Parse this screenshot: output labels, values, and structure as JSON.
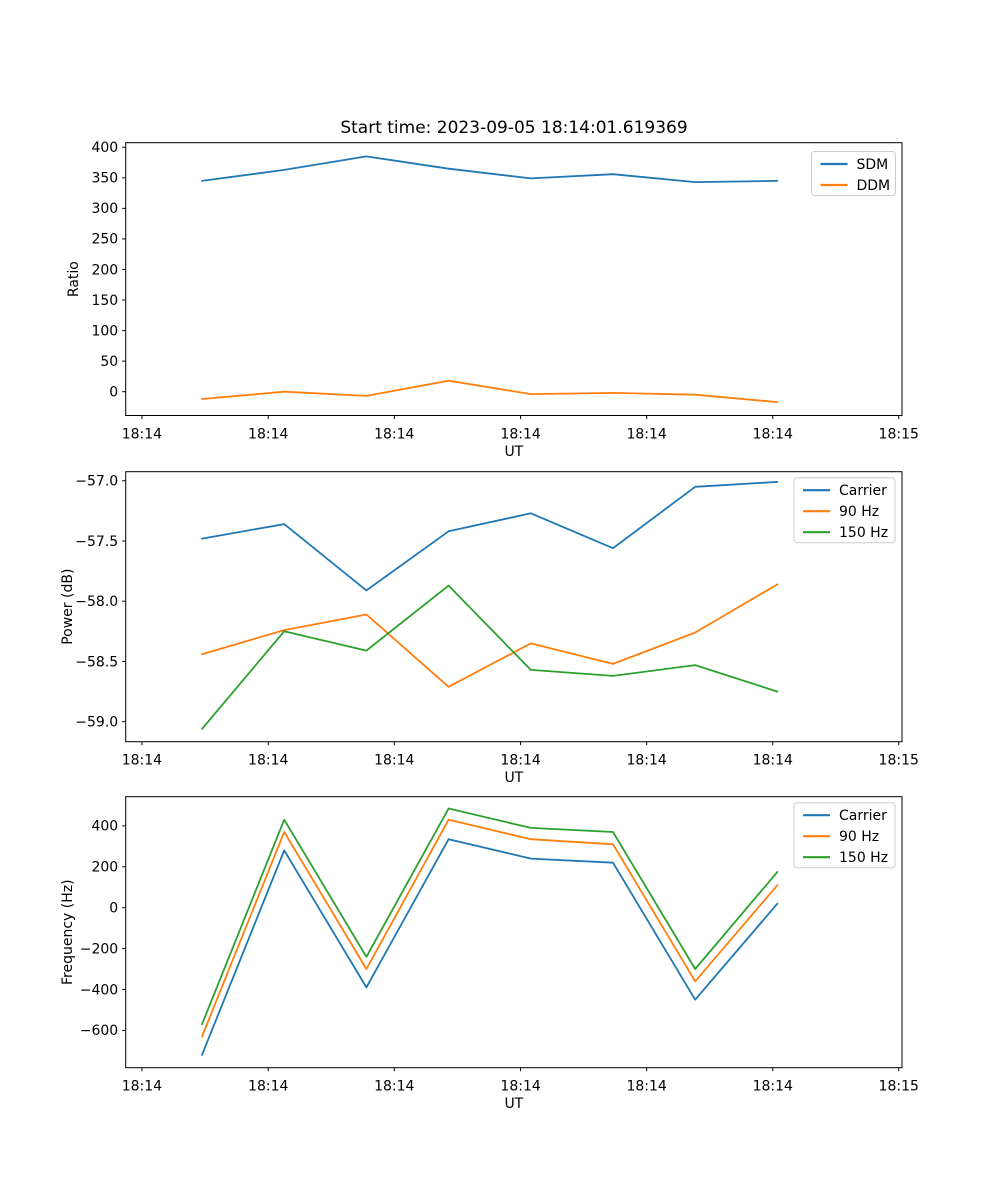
{
  "figure": {
    "title": "Start time: 2023-09-05 18:14:01.619369",
    "background_color": "#ffffff",
    "text_color": "#000000",
    "spine_color": "#000000",
    "legend_border_color": "#cccccc",
    "series_colors": {
      "blue": "#1f77b4",
      "orange": "#ff7f0e",
      "green": "#2ca02c"
    }
  },
  "chart_data": [
    {
      "type": "line",
      "title": "Start time: 2023-09-05 18:14:01.619369",
      "xlabel": "UT",
      "ylabel": "Ratio",
      "x_tick_labels": [
        "18:14",
        "18:14",
        "18:14",
        "18:14",
        "18:14",
        "18:14",
        "18:15"
      ],
      "y_tick_values": [
        0,
        50,
        100,
        150,
        200,
        250,
        300,
        350,
        400
      ],
      "y_tick_labels": [
        "0",
        "50",
        "100",
        "150",
        "200",
        "250",
        "300",
        "350",
        "400"
      ],
      "ylim": [
        -39,
        407.5
      ],
      "grid": false,
      "legend_position": "upper right",
      "series": [
        {
          "name": "SDM",
          "color": "#1f77b4",
          "values": [
            345,
            363,
            385,
            365,
            349,
            356,
            343,
            345
          ]
        },
        {
          "name": "DDM",
          "color": "#ff7f0e",
          "values": [
            -12,
            0,
            -7,
            18,
            -4,
            -2,
            -5,
            -17
          ]
        }
      ]
    },
    {
      "type": "line",
      "title": "",
      "xlabel": "UT",
      "ylabel": "Power (dB)",
      "x_tick_labels": [
        "18:14",
        "18:14",
        "18:14",
        "18:14",
        "18:14",
        "18:14",
        "18:15"
      ],
      "y_tick_values": [
        -59.0,
        -58.5,
        -58.0,
        -57.5,
        -57.0
      ],
      "y_tick_labels": [
        "−59.0",
        "−58.5",
        "−58.0",
        "−57.5",
        "−57.0"
      ],
      "ylim": [
        -59.166,
        -56.925
      ],
      "grid": false,
      "legend_position": "upper right",
      "series": [
        {
          "name": "Carrier",
          "color": "#1f77b4",
          "values": [
            -57.48,
            -57.36,
            -57.91,
            -57.42,
            -57.27,
            -57.56,
            -57.05,
            -57.01
          ]
        },
        {
          "name": "90 Hz",
          "color": "#ff7f0e",
          "values": [
            -58.44,
            -58.24,
            -58.11,
            -58.71,
            -58.35,
            -58.52,
            -58.26,
            -57.86
          ]
        },
        {
          "name": "150 Hz",
          "color": "#2ca02c",
          "values": [
            -59.06,
            -58.25,
            -58.41,
            -57.87,
            -58.57,
            -58.62,
            -58.53,
            -58.75
          ]
        }
      ]
    },
    {
      "type": "line",
      "title": "",
      "xlabel": "UT",
      "ylabel": "Frequency (Hz)",
      "x_tick_labels": [
        "18:14",
        "18:14",
        "18:14",
        "18:14",
        "18:14",
        "18:14",
        "18:15"
      ],
      "y_tick_values": [
        -600,
        -400,
        -200,
        0,
        200,
        400
      ],
      "y_tick_labels": [
        "−600",
        "−400",
        "−200",
        "0",
        "200",
        "400"
      ],
      "ylim": [
        -782.4,
        542.7
      ],
      "grid": false,
      "legend_position": "upper right",
      "series": [
        {
          "name": "Carrier",
          "color": "#1f77b4",
          "values": [
            -720,
            280,
            -390,
            335,
            240,
            220,
            -450,
            20
          ]
        },
        {
          "name": "90 Hz",
          "color": "#ff7f0e",
          "values": [
            -630,
            370,
            -300,
            430,
            335,
            310,
            -360,
            110
          ]
        },
        {
          "name": "150 Hz",
          "color": "#2ca02c",
          "values": [
            -570,
            430,
            -240,
            485,
            390,
            370,
            -300,
            175
          ]
        }
      ]
    }
  ]
}
